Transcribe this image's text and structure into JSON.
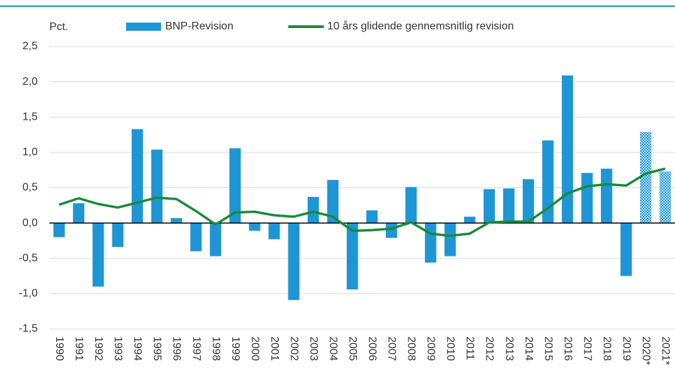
{
  "chart_data": {
    "type": "bar_line",
    "y_label": "Pct.",
    "categories": [
      "1990",
      "1991",
      "1992",
      "1993",
      "1994",
      "1995",
      "1996",
      "1997",
      "1998",
      "1999",
      "2000",
      "2001",
      "2002",
      "2003",
      "2004",
      "2005",
      "2006",
      "2007",
      "2008",
      "2009",
      "2010",
      "2011",
      "2012",
      "2013",
      "2014",
      "2015",
      "2016",
      "2017",
      "2018",
      "2019",
      "2020*",
      "2021*"
    ],
    "series": [
      {
        "name": "BNP-Revision",
        "type": "bar",
        "color": "#1e96d6",
        "hatched": [
          false,
          false,
          false,
          false,
          false,
          false,
          false,
          false,
          false,
          false,
          false,
          false,
          false,
          false,
          false,
          false,
          false,
          false,
          false,
          false,
          false,
          false,
          false,
          false,
          false,
          false,
          false,
          false,
          false,
          false,
          true,
          true
        ],
        "values": [
          -0.2,
          0.28,
          -0.9,
          -0.34,
          1.33,
          1.04,
          0.07,
          -0.4,
          -0.47,
          1.06,
          -0.11,
          -0.23,
          -1.09,
          0.37,
          0.61,
          -0.94,
          0.18,
          -0.21,
          0.51,
          -0.56,
          -0.47,
          0.09,
          0.48,
          0.49,
          0.62,
          1.17,
          2.09,
          0.71,
          0.77,
          -0.75,
          1.29,
          0.73
        ]
      },
      {
        "name": "10 års glidende gennemsnitlig revision",
        "type": "line",
        "color": "#1a8a3a",
        "values": [
          0.26,
          0.35,
          0.27,
          0.22,
          0.29,
          0.36,
          0.34,
          0.17,
          -0.02,
          0.15,
          0.16,
          0.11,
          0.09,
          0.16,
          0.09,
          -0.11,
          -0.1,
          -0.08,
          0.01,
          -0.15,
          -0.18,
          -0.15,
          0.01,
          0.02,
          0.02,
          0.21,
          0.42,
          0.52,
          0.55,
          0.53,
          0.7,
          0.77
        ]
      }
    ],
    "ylim": [
      -1.5,
      2.5
    ],
    "yticks": [
      {
        "value": 2.5,
        "label": "2,5"
      },
      {
        "value": 2,
        "label": "2,0"
      },
      {
        "value": 1.5,
        "label": "1,5"
      },
      {
        "value": 1,
        "label": "1,0"
      },
      {
        "value": 0.5,
        "label": "0,5"
      },
      {
        "value": 0,
        "label": "0,0"
      },
      {
        "value": -0.5,
        "label": "-0,5"
      },
      {
        "value": -1,
        "label": "-1,0"
      },
      {
        "value": -1.5,
        "label": "-1,5"
      }
    ],
    "grid": true,
    "legend": "top"
  }
}
